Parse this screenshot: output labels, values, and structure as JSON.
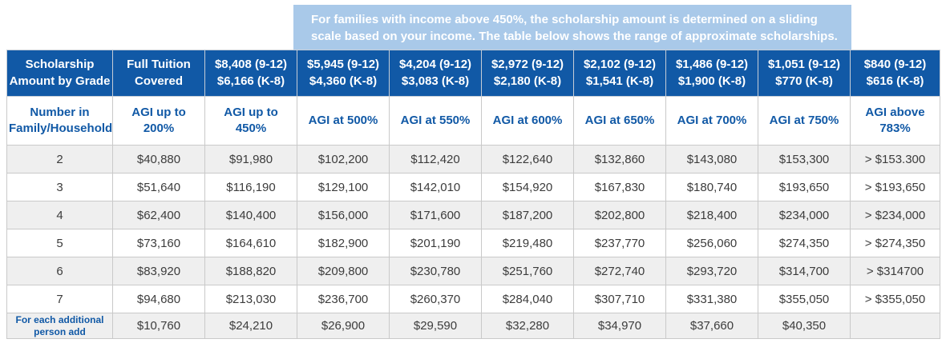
{
  "banner": {
    "text": "For families with income above 450%, the scholarship amount is determined on a sliding scale based on your income. The table below shows the range of approximate scholarships.",
    "bg_color": "#a9c9e9"
  },
  "colors": {
    "header_bg": "#1159a6",
    "header_text": "#ffffff",
    "agi_text": "#1159a6",
    "stripe_bg": "#efefef",
    "data_text": "#3c3c3c"
  },
  "chart_data": {
    "type": "table",
    "title": "Scholarship Amount by Grade vs Number in Family/Household",
    "header": {
      "corner_title": "Scholarship\nAmount by Grade",
      "corner_subtitle": "Number in\nFamily/Household",
      "columns": [
        {
          "amount": "Full Tuition\nCovered",
          "agi": "AGI up to\n200%"
        },
        {
          "amount": "$8,408 (9-12)\n$6,166 (K-8)",
          "agi": "AGI up to\n450%"
        },
        {
          "amount": "$5,945 (9-12)\n$4,360 (K-8)",
          "agi": "AGI at 500%"
        },
        {
          "amount": "$4,204 (9-12)\n$3,083 (K-8)",
          "agi": "AGI at 550%"
        },
        {
          "amount": "$2,972 (9-12)\n$2,180 (K-8)",
          "agi": "AGI at 600%"
        },
        {
          "amount": "$2,102 (9-12)\n$1,541 (K-8)",
          "agi": "AGI at 650%"
        },
        {
          "amount": "$1,486 (9-12)\n$1,900 (K-8)",
          "agi": "AGI at 700%"
        },
        {
          "amount": "$1,051 (9-12)\n$770 (K-8)",
          "agi": "AGI at 750%"
        },
        {
          "amount": "$840 (9-12)\n$616 (K-8)",
          "agi": "AGI above\n783%"
        }
      ]
    },
    "rows": [
      {
        "label": "2",
        "values": [
          "$40,880",
          "$91,980",
          "$102,200",
          "$112,420",
          "$122,640",
          "$132,860",
          "$143,080",
          "$153,300",
          "> $153.300"
        ]
      },
      {
        "label": "3",
        "values": [
          "$51,640",
          "$116,190",
          "$129,100",
          "$142,010",
          "$154,920",
          "$167,830",
          "$180,740",
          "$193,650",
          "> $193,650"
        ]
      },
      {
        "label": "4",
        "values": [
          "$62,400",
          "$140,400",
          "$156,000",
          "$171,600",
          "$187,200",
          "$202,800",
          "$218,400",
          "$234,000",
          "> $234,000"
        ]
      },
      {
        "label": "5",
        "values": [
          "$73,160",
          "$164,610",
          "$182,900",
          "$201,190",
          "$219,480",
          "$237,770",
          "$256,060",
          "$274,350",
          "> $274,350"
        ]
      },
      {
        "label": "6",
        "values": [
          "$83,920",
          "$188,820",
          "$209,800",
          "$230,780",
          "$251,760",
          "$272,740",
          "$293,720",
          "$314,700",
          "> $314700"
        ]
      },
      {
        "label": "7",
        "values": [
          "$94,680",
          "$213,030",
          "$236,700",
          "$260,370",
          "$284,040",
          "$307,710",
          "$331,380",
          "$355,050",
          "> $355,050"
        ]
      },
      {
        "label": "For each additional\nperson add",
        "values": [
          "$10,760",
          "$24,210",
          "$26,900",
          "$29,590",
          "$32,280",
          "$34,970",
          "$37,660",
          "$40,350",
          ""
        ]
      }
    ]
  }
}
